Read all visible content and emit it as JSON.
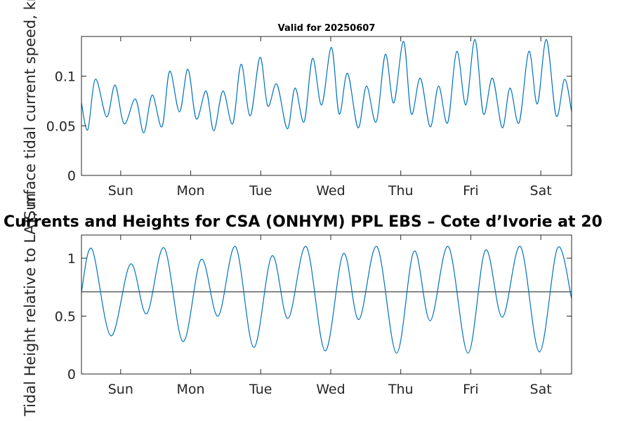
{
  "figure": {
    "small_title": "Valid for 20250607",
    "big_title": "Currents and Heights for CSA (ONHYM) PPL EBS  – Cote d’Ivorie at 20"
  },
  "chart_data": [
    {
      "type": "line",
      "ylabel": "Surface tidal current speed, kn",
      "xlim": [
        0,
        7
      ],
      "ylim": [
        0,
        0.14
      ],
      "yticks": [
        0,
        0.05,
        0.1
      ],
      "ytick_labels": [
        "0",
        "0.05",
        "0.1"
      ],
      "xticks": [
        0.56,
        1.56,
        2.56,
        3.56,
        4.56,
        5.56,
        6.56
      ],
      "xtick_labels": [
        "Sun",
        "Mon",
        "Tue",
        "Wed",
        "Thu",
        "Fri",
        "Sat"
      ],
      "color": "#0072bd",
      "series": [
        {
          "x": [
            0,
            0.09,
            0.2,
            0.36,
            0.48,
            0.61,
            0.77,
            0.89,
            1.01,
            1.15,
            1.26,
            1.4,
            1.52,
            1.64,
            1.78,
            1.89,
            2.02,
            2.16,
            2.28,
            2.41,
            2.55,
            2.66,
            2.79,
            2.94,
            3.05,
            3.18,
            3.3,
            3.43,
            3.57,
            3.68,
            3.8,
            3.95,
            4.07,
            4.21,
            4.34,
            4.46,
            4.6,
            4.71,
            4.84,
            4.98,
            5.1,
            5.23,
            5.36,
            5.49,
            5.62,
            5.74,
            5.87,
            6.01,
            6.12,
            6.25,
            6.39,
            6.51,
            6.64,
            6.78,
            6.9,
            7
          ],
          "y": [
            0.073,
            0.046,
            0.097,
            0.059,
            0.091,
            0.052,
            0.077,
            0.043,
            0.081,
            0.049,
            0.105,
            0.064,
            0.107,
            0.057,
            0.085,
            0.045,
            0.085,
            0.052,
            0.112,
            0.06,
            0.119,
            0.07,
            0.092,
            0.047,
            0.088,
            0.054,
            0.118,
            0.071,
            0.129,
            0.062,
            0.103,
            0.048,
            0.09,
            0.054,
            0.122,
            0.073,
            0.135,
            0.062,
            0.098,
            0.049,
            0.09,
            0.053,
            0.125,
            0.071,
            0.137,
            0.062,
            0.098,
            0.048,
            0.088,
            0.053,
            0.125,
            0.072,
            0.137,
            0.06,
            0.097,
            0.064
          ]
        }
      ]
    },
    {
      "type": "line",
      "ylabel": "Tidal Height relative to LAT, m",
      "xlim": [
        0,
        7
      ],
      "ylim": [
        0,
        1.2
      ],
      "yticks": [
        0,
        0.5,
        1
      ],
      "ytick_labels": [
        "0",
        "0.5",
        "1"
      ],
      "xticks": [
        0.56,
        1.56,
        2.56,
        3.56,
        4.56,
        5.56,
        6.56
      ],
      "xtick_labels": [
        "Sun",
        "Mon",
        "Tue",
        "Wed",
        "Thu",
        "Fri",
        "Sat"
      ],
      "color": "#0072bd",
      "reference_line": {
        "y": 0.71,
        "color": "#404040"
      },
      "series": [
        {
          "x": [
            0,
            0.15,
            0.42,
            0.7,
            0.93,
            1.18,
            1.45,
            1.71,
            1.95,
            2.2,
            2.46,
            2.72,
            2.95,
            3.21,
            3.48,
            3.74,
            3.96,
            4.22,
            4.5,
            4.75,
            4.98,
            5.24,
            5.52,
            5.77,
            6.01,
            6.27,
            6.54,
            6.8,
            7
          ],
          "y": [
            0.71,
            1.08,
            0.33,
            0.95,
            0.52,
            1.09,
            0.28,
            0.99,
            0.5,
            1.1,
            0.23,
            1.02,
            0.48,
            1.1,
            0.2,
            1.04,
            0.47,
            1.1,
            0.18,
            1.06,
            0.46,
            1.1,
            0.18,
            1.07,
            0.49,
            1.1,
            0.19,
            1.09,
            0.65
          ]
        }
      ]
    }
  ]
}
